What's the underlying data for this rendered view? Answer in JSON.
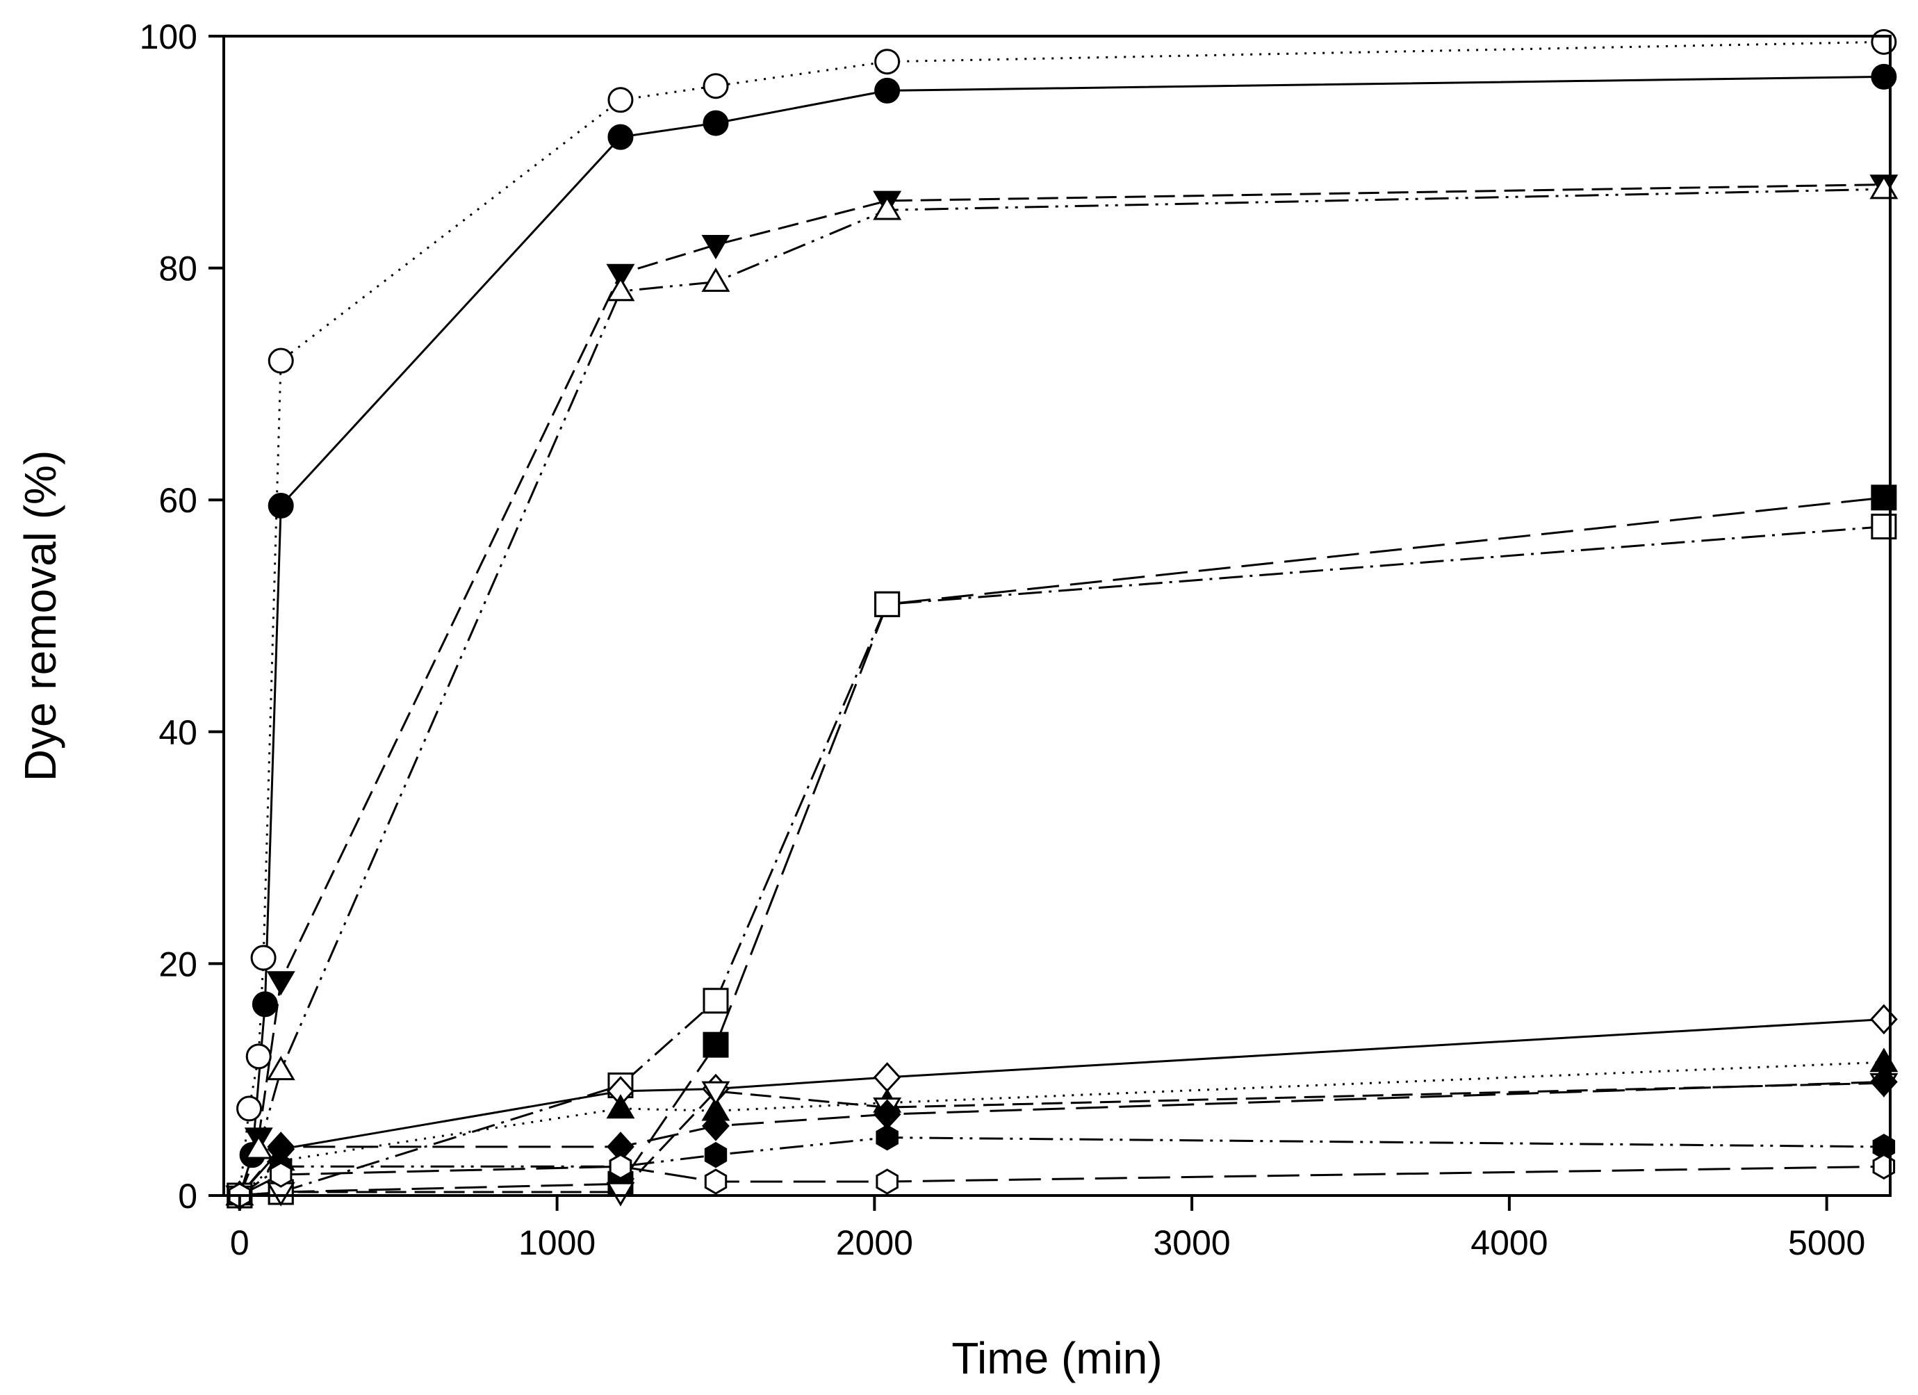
{
  "chart_data": {
    "type": "line",
    "title": "",
    "xlabel": "Time (min)",
    "ylabel": "Dye removal (%)",
    "xlim": [
      -50,
      5200
    ],
    "ylim": [
      0,
      100
    ],
    "xticks": [
      0,
      1000,
      2000,
      3000,
      4000,
      5000
    ],
    "yticks": [
      0,
      20,
      40,
      60,
      80,
      100
    ],
    "grid": false,
    "legend": "none",
    "series": [
      {
        "name": "series-1",
        "marker": "circle",
        "filled": false,
        "line": "dotted",
        "x": [
          0,
          30,
          60,
          75,
          130,
          1200,
          1500,
          2040,
          5180
        ],
        "y": [
          0,
          7.5,
          12,
          20.5,
          72,
          94.5,
          95.7,
          97.8,
          99.5
        ]
      },
      {
        "name": "series-2",
        "marker": "circle",
        "filled": true,
        "line": "solid",
        "x": [
          0,
          40,
          80,
          130,
          1200,
          1500,
          2040,
          5180
        ],
        "y": [
          0,
          3.5,
          16.5,
          59.5,
          91.3,
          92.5,
          95.3,
          96.5
        ]
      },
      {
        "name": "series-3",
        "marker": "triangle-down",
        "filled": true,
        "line": "dashed",
        "x": [
          0,
          60,
          130,
          1200,
          1500,
          2040,
          5180
        ],
        "y": [
          0,
          5,
          18.5,
          79.5,
          82,
          85.8,
          87.2
        ]
      },
      {
        "name": "series-4",
        "marker": "triangle-up",
        "filled": false,
        "line": "dash-dot-dot",
        "x": [
          0,
          60,
          130,
          1200,
          1500,
          2040,
          5180
        ],
        "y": [
          0,
          4,
          10.8,
          78,
          78.8,
          85,
          86.8
        ]
      },
      {
        "name": "series-5",
        "marker": "square",
        "filled": true,
        "line": "long-dash",
        "x": [
          0,
          130,
          1200,
          1500,
          2040,
          5180
        ],
        "y": [
          0,
          0.3,
          1,
          13,
          51,
          60.2
        ]
      },
      {
        "name": "series-6",
        "marker": "square",
        "filled": false,
        "line": "dash-dot",
        "x": [
          0,
          130,
          1200,
          1500,
          2040,
          5180
        ],
        "y": [
          0,
          0.3,
          9.5,
          16.8,
          51,
          57.7
        ]
      },
      {
        "name": "series-7",
        "marker": "diamond",
        "filled": false,
        "line": "solid",
        "x": [
          0,
          130,
          1200,
          1500,
          2040,
          5180
        ],
        "y": [
          0,
          4,
          9,
          9.2,
          10.2,
          15.2
        ]
      },
      {
        "name": "series-8",
        "marker": "triangle-up",
        "filled": true,
        "line": "dotted",
        "x": [
          0,
          130,
          1200,
          1500,
          2040,
          5180
        ],
        "y": [
          0,
          3,
          7.5,
          7.3,
          8,
          11.5
        ]
      },
      {
        "name": "series-9",
        "marker": "triangle-down",
        "filled": false,
        "line": "dashed",
        "x": [
          0,
          130,
          1200,
          1500,
          2040,
          5180
        ],
        "y": [
          0,
          0.3,
          0.3,
          9,
          7.6,
          9.7
        ]
      },
      {
        "name": "series-10",
        "marker": "diamond",
        "filled": true,
        "line": "long-dash",
        "x": [
          0,
          130,
          1200,
          1500,
          2040,
          5180
        ],
        "y": [
          0,
          4.2,
          4.2,
          6,
          7,
          9.8
        ]
      },
      {
        "name": "series-11",
        "marker": "hexagon",
        "filled": true,
        "line": "dash-dot-dot",
        "x": [
          0,
          130,
          1200,
          1500,
          2040,
          5180
        ],
        "y": [
          0,
          2.5,
          2.5,
          3.5,
          5,
          4.2
        ]
      },
      {
        "name": "series-12",
        "marker": "hexagon",
        "filled": false,
        "line": "long-dash",
        "x": [
          0,
          130,
          1200,
          1500,
          2040,
          5180
        ],
        "y": [
          0,
          1.8,
          2.5,
          1.2,
          1.2,
          2.5
        ]
      }
    ]
  }
}
